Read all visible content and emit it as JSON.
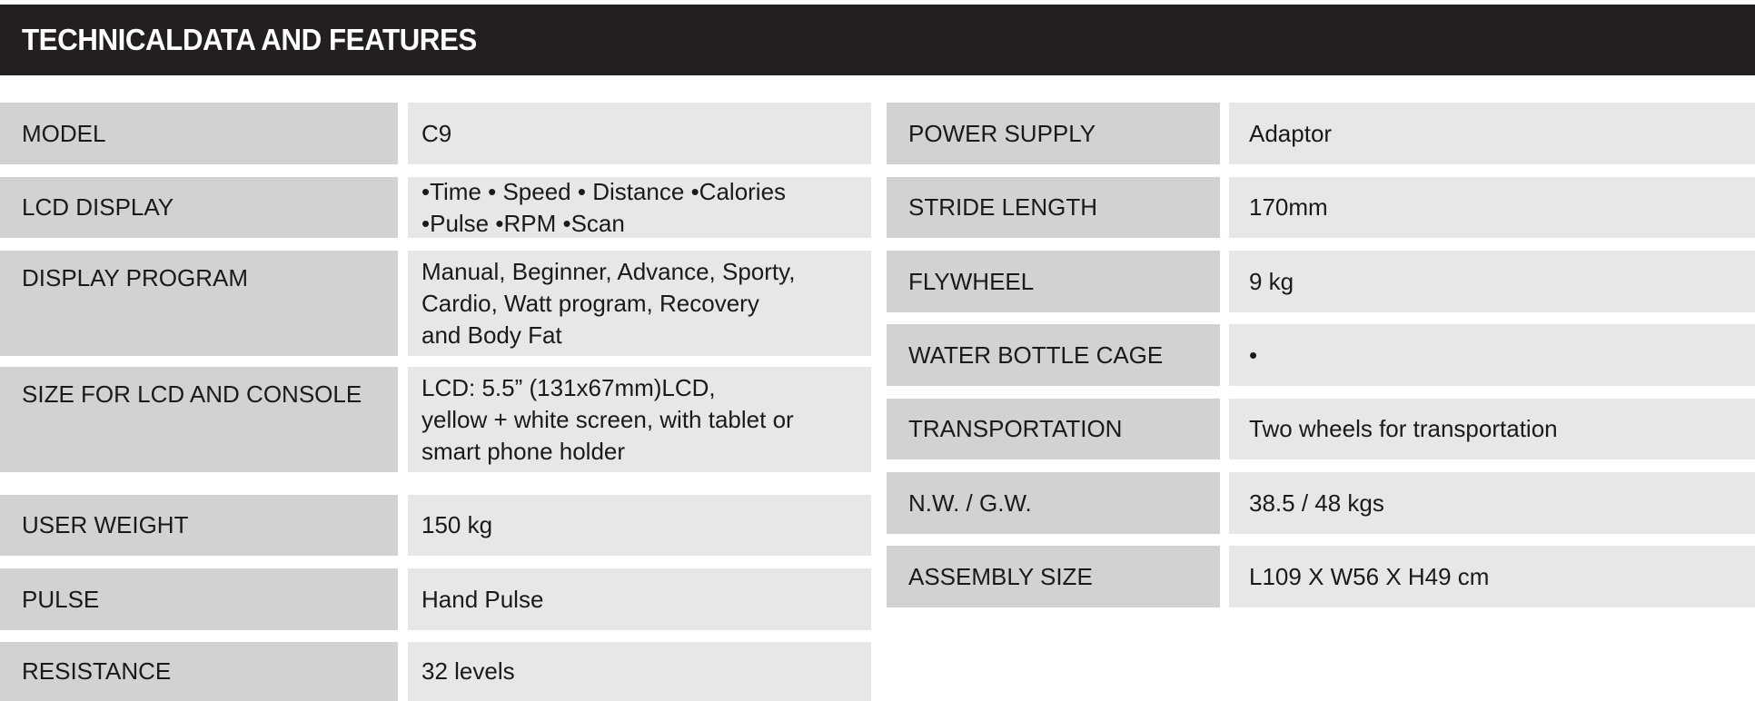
{
  "title": "TECHNICALDATA AND FEATURES",
  "left_rows": [
    {
      "label": "MODEL",
      "value": "C9"
    },
    {
      "label": "LCD DISPLAY",
      "value": "•Time • Speed • Distance •Calories\n•Pulse •RPM •Scan"
    },
    {
      "label": "DISPLAY PROGRAM",
      "value": "Manual, Beginner, Advance, Sporty,\nCardio, Watt program, Recovery\nand Body Fat"
    },
    {
      "label": "SIZE FOR LCD AND CONSOLE",
      "value": "LCD: 5.5” (131x67mm)LCD,\nyellow + white screen, with tablet or\nsmart phone holder"
    },
    {
      "label": "USER WEIGHT",
      "value": "150 kg"
    },
    {
      "label": "PULSE",
      "value": "Hand Pulse"
    },
    {
      "label": "RESISTANCE",
      "value": "32 levels"
    }
  ],
  "right_rows": [
    {
      "label": "POWER SUPPLY",
      "value": "Adaptor"
    },
    {
      "label": "STRIDE LENGTH",
      "value": "170mm"
    },
    {
      "label": "FLYWHEEL",
      "value": "9 kg"
    },
    {
      "label": "WATER BOTTLE CAGE",
      "value": "•"
    },
    {
      "label": "TRANSPORTATION",
      "value": "Two wheels for transportation"
    },
    {
      "label": "N.W. / G.W.",
      "value": "38.5 / 48 kgs"
    },
    {
      "label": "ASSEMBLY SIZE",
      "value": "L109 X W56 X H49 cm"
    }
  ],
  "colors": {
    "header_bg": "#231f20",
    "label_bg": "#d1d2d4",
    "value_bg": "#e6e7e8"
  }
}
